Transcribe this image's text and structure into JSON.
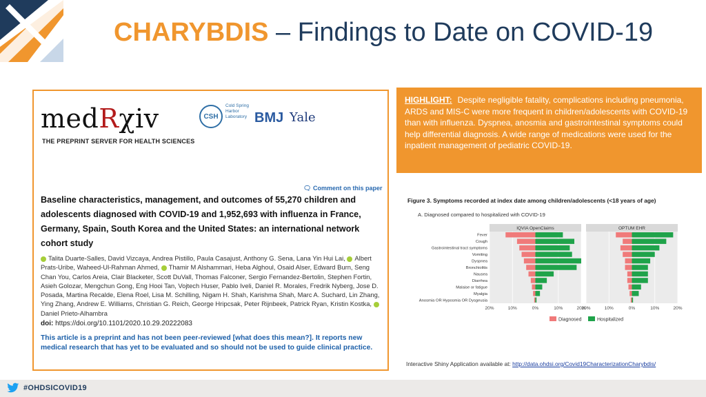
{
  "slide": {
    "title_accent": "CHARYBDIS",
    "title_rest": " – Findings to Date on COVID-19",
    "footer_hashtag": "#OHDSICOVID19"
  },
  "paper": {
    "logo_prefix": "med",
    "logo_r": "R",
    "logo_suffix": "χiv",
    "tagline": "THE PREPRINT SERVER FOR HEALTH SCIENCES",
    "csh_initials": "CSH",
    "csh_name": "Cold Spring Harbor Laboratory",
    "bmj": "BMJ",
    "yale": "Yale",
    "comment_link": "Comment on this paper",
    "title": "Baseline characteristics, management, and outcomes of 55,270 children and adolescents diagnosed with COVID-19 and 1,952,693 with influenza in France, Germany, Spain, South Korea and the United States: an international network cohort study",
    "authors_a": "Talita Duarte-Salles, David Vizcaya, Andrea Pistillo, Paula Casajust, Anthony G. Sena, Lana Yin Hui Lai,",
    "authors_b": "Albert Prats-Uribe, Waheed-Ul-Rahman Ahmed,",
    "authors_c": "Thamir M Alshammari, Heba Alghoul, Osaid Alser, Edward Burn, Seng Chan You, Carlos Areia, Clair Blacketer, Scott DuVall, Thomas Falconer, Sergio Fernandez-Bertolin, Stephen Fortin, Asieh Golozar, Mengchun Gong, Eng Hooi Tan, Vojtech Huser, Pablo Iveli, Daniel R. Morales, Fredrik Nyberg, Jose D. Posada, Martina Recalde, Elena Roel, Lisa M. Schilling, Nigam H. Shah, Karishma Shah, Marc A. Suchard, Lin Zhang, Ying Zhang, Andrew E. Williams, Christian G. Reich, George Hripcsak, Peter Rijnbeek, Patrick Ryan, Kristin Kostka,",
    "authors_d": "Daniel Prieto-Alhambra",
    "doi_label": "doi:",
    "doi_value": "https://doi.org/10.1101/2020.10.29.20222083",
    "preprint_note": "This article is a preprint and has not been peer-reviewed [what does this mean?]. It reports new medical research that has yet to be evaluated and so should not be used to guide clinical practice."
  },
  "highlight": {
    "label": "HIGHLIGHT:",
    "text": "Despite negligible fatality, complications including pneumonia, ARDS and MIS-C were more frequent in children/adolescents with COVID-19 than with influenza. Dyspnea, anosmia and gastrointestinal symptoms could help differential diagnosis. A wide range of medications were used for the inpatient management of pediatric COVID-19."
  },
  "figure": {
    "title": "Figure 3. Symptoms recorded at index date among children/adolescents (<18 years of age)",
    "subtitle": "A.   Diagnosed compared to hospitalized with COVID-19"
  },
  "chart_data": {
    "type": "bar",
    "orientation": "horizontal-mirrored",
    "categories": [
      "Fever",
      "Cough",
      "Gastrointestinal tract symptoms",
      "Vomiting",
      "Dyspnea",
      "Bronchiolitis",
      "Nausea",
      "Diarrhea",
      "Malaise or fatigue",
      "Myalgia",
      "Anosmia OR Hyposmia OR Dysgeusia"
    ],
    "panels": [
      {
        "name": "IQVIA OpenClaims",
        "series": [
          {
            "name": "Diagnosed",
            "values": [
              13,
              8,
              7,
              6,
              5,
              4,
              3,
              2,
              1.5,
              1,
              0.5
            ]
          },
          {
            "name": "Hospitalized",
            "values": [
              12,
              17,
              15,
              16,
              20,
              18,
              8,
              5,
              3,
              2,
              0.5
            ]
          }
        ]
      },
      {
        "name": "OPTUM EHR",
        "series": [
          {
            "name": "Diagnosed",
            "values": [
              7,
              4,
              5,
              4,
              3,
              3,
              2,
              2,
              1.5,
              1,
              0.5
            ]
          },
          {
            "name": "Hospitalized",
            "values": [
              18,
              15,
              12,
              10,
              8,
              7,
              7,
              7,
              4,
              3,
              0.5
            ]
          }
        ]
      }
    ],
    "xticks": [
      "20%",
      "10%",
      "0%",
      "10%",
      "20%"
    ],
    "xlim": [
      -20,
      20
    ],
    "legend": [
      "Diagnosed",
      "Hospitalized"
    ],
    "legend_position": "bottom",
    "colors": {
      "Diagnosed": "#f07a7a",
      "Hospitalized": "#1fa34a",
      "panel_header": "#d9d9d9",
      "panel_bg": "#ebebeb"
    },
    "grid": true
  },
  "shiny": {
    "label": "Interactive Shiny Application available at:",
    "link": "http://data.ohdsi.org/Covid19CharacterizationCharybdis/"
  },
  "colors": {
    "accent": "#f0962e",
    "title_blue": "#1f3b5c",
    "link_blue": "#1c5fa8"
  }
}
